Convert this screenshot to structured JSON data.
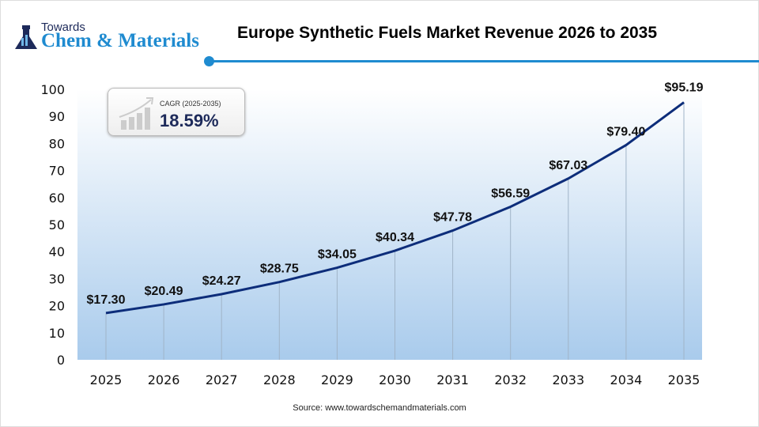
{
  "logo": {
    "top": "Towards",
    "main": "Chem & Materials"
  },
  "title": "Europe Synthetic Fuels Market Revenue 2026 to 2035",
  "cagr": {
    "label": "CAGR (2025-2035)",
    "value": "18.59%"
  },
  "source": "Source: www.towardschemandmaterials.com",
  "colors": {
    "line": "#0d2d7a",
    "accent": "#1f8bd0",
    "plot_bottom": "#a9cbec"
  },
  "chart_data": {
    "type": "line",
    "categories": [
      "2025",
      "2026",
      "2027",
      "2028",
      "2029",
      "2030",
      "2031",
      "2032",
      "2033",
      "2034",
      "2035"
    ],
    "values": [
      17.3,
      20.49,
      24.27,
      28.75,
      34.05,
      40.34,
      47.78,
      56.59,
      67.03,
      79.4,
      95.19
    ],
    "labels": [
      "$17.30",
      "$20.49",
      "$24.27",
      "$28.75",
      "$34.05",
      "$40.34",
      "$47.78",
      "$56.59",
      "$67.03",
      "$79.40",
      "$95.19"
    ],
    "yticks": [
      "0",
      "10",
      "20",
      "30",
      "40",
      "50",
      "60",
      "70",
      "80",
      "90",
      "100"
    ],
    "ylim": [
      0,
      100
    ],
    "grid": "vertical",
    "legend": "none"
  }
}
